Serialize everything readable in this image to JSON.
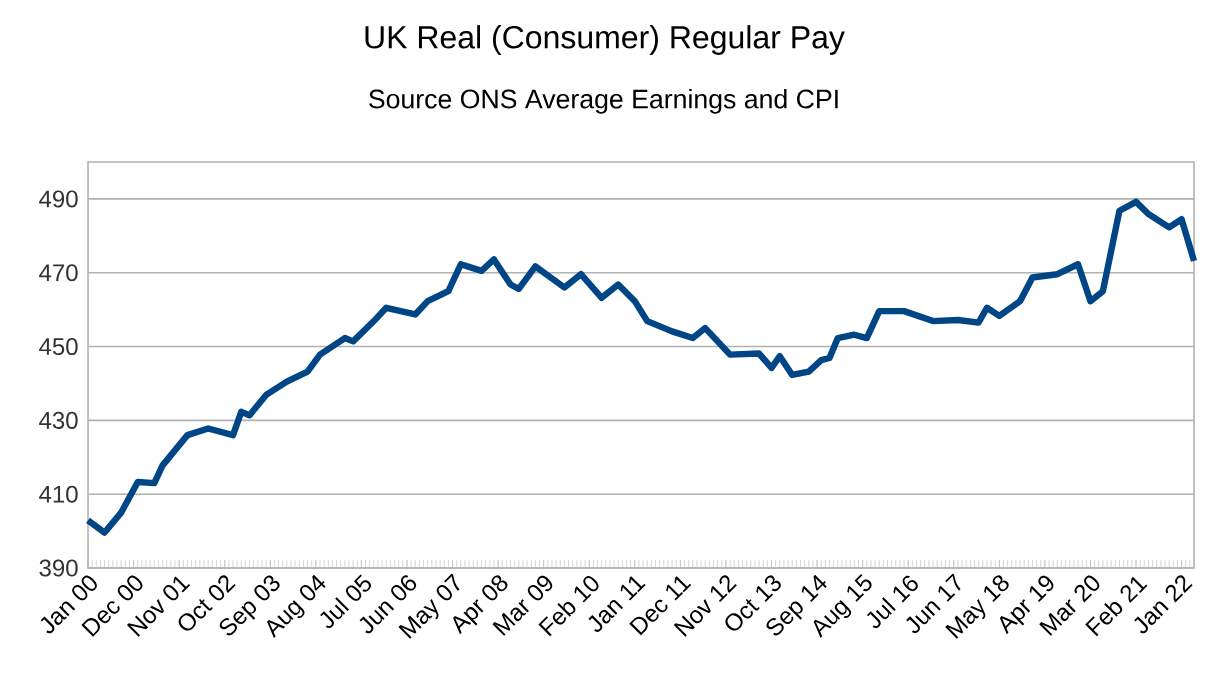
{
  "chart_data": {
    "type": "line",
    "title": "UK Real (Consumer) Regular Pay",
    "subtitle": "Source ONS Average Earnings and CPI",
    "x": [
      "2000-01",
      "2000-05",
      "2000-09",
      "2001-01",
      "2001-05",
      "2001-07",
      "2002-01",
      "2002-06",
      "2002-12",
      "2003-02",
      "2003-04",
      "2003-08",
      "2004-01",
      "2004-06",
      "2004-09",
      "2005-03",
      "2005-05",
      "2005-10",
      "2006-01",
      "2006-08",
      "2006-11",
      "2007-04",
      "2007-07",
      "2007-12",
      "2008-03",
      "2008-07",
      "2008-09",
      "2009-01",
      "2009-08",
      "2009-12",
      "2010-05",
      "2010-09",
      "2011-01",
      "2011-04",
      "2011-10",
      "2012-03",
      "2012-06",
      "2012-12",
      "2013-07",
      "2013-10",
      "2013-12",
      "2014-03",
      "2014-07",
      "2014-10",
      "2014-12",
      "2015-02",
      "2015-06",
      "2015-09",
      "2015-12",
      "2016-06",
      "2017-01",
      "2017-07",
      "2017-12",
      "2018-02",
      "2018-05",
      "2018-10",
      "2019-01",
      "2019-07",
      "2019-12",
      "2020-03",
      "2020-06",
      "2020-10",
      "2021-02",
      "2021-05",
      "2021-10",
      "2022-01",
      "2022-04"
    ],
    "series": [
      {
        "color": "#004586",
        "values": [
          402.9,
          399.6,
          405,
          413.3,
          413,
          417.8,
          426,
          427.8,
          426,
          432.3,
          431.4,
          436.9,
          440.5,
          443.2,
          447.8,
          452.3,
          451.4,
          456.9,
          460.5,
          458.7,
          462.3,
          465,
          472.3,
          470.5,
          473.6,
          466.8,
          465.6,
          471.7,
          466,
          469.6,
          463.2,
          466.8,
          462.3,
          456.9,
          454.1,
          452.3,
          455,
          447.8,
          448.1,
          444.2,
          447.4,
          442.3,
          443.2,
          446.3,
          446.9,
          452.3,
          453.2,
          452.3,
          459.6,
          459.6,
          456.9,
          457.2,
          456.5,
          460.5,
          458.3,
          462.3,
          468.7,
          469.6,
          472.3,
          462.3,
          465,
          486.8,
          489.2,
          485.9,
          482.3,
          484.5,
          473.2
        ]
      }
    ],
    "xlim": [
      "2000-01",
      "2022-04"
    ],
    "xticks": [
      {
        "value": "2000-01",
        "label": "Jan 00"
      },
      {
        "value": "2000-12",
        "label": "Dec 00"
      },
      {
        "value": "2001-11",
        "label": "Nov 01"
      },
      {
        "value": "2002-10",
        "label": "Oct 02"
      },
      {
        "value": "2003-09",
        "label": "Sep 03"
      },
      {
        "value": "2004-08",
        "label": "Aug 04"
      },
      {
        "value": "2005-07",
        "label": "Jul 05"
      },
      {
        "value": "2006-06",
        "label": "Jun 06"
      },
      {
        "value": "2007-05",
        "label": "May 07"
      },
      {
        "value": "2008-04",
        "label": "Apr 08"
      },
      {
        "value": "2009-03",
        "label": "Mar 09"
      },
      {
        "value": "2010-02",
        "label": "Feb 10"
      },
      {
        "value": "2011-01",
        "label": "Jan 11"
      },
      {
        "value": "2011-12",
        "label": "Dec 11"
      },
      {
        "value": "2012-11",
        "label": "Nov 12"
      },
      {
        "value": "2013-10",
        "label": "Oct 13"
      },
      {
        "value": "2014-09",
        "label": "Sep 14"
      },
      {
        "value": "2015-08",
        "label": "Aug 15"
      },
      {
        "value": "2016-07",
        "label": "Jul 16"
      },
      {
        "value": "2017-06",
        "label": "Jun 17"
      },
      {
        "value": "2018-05",
        "label": "May 18"
      },
      {
        "value": "2019-04",
        "label": "Apr 19"
      },
      {
        "value": "2020-03",
        "label": "Mar 20"
      },
      {
        "value": "2021-02",
        "label": "Feb 21"
      },
      {
        "value": "2022-01",
        "label": "Jan 22"
      }
    ],
    "ylim": [
      390,
      500
    ],
    "yticks": [
      390,
      410,
      430,
      450,
      470,
      490
    ],
    "grid": "y",
    "marker": "none",
    "line_style": "solid"
  }
}
